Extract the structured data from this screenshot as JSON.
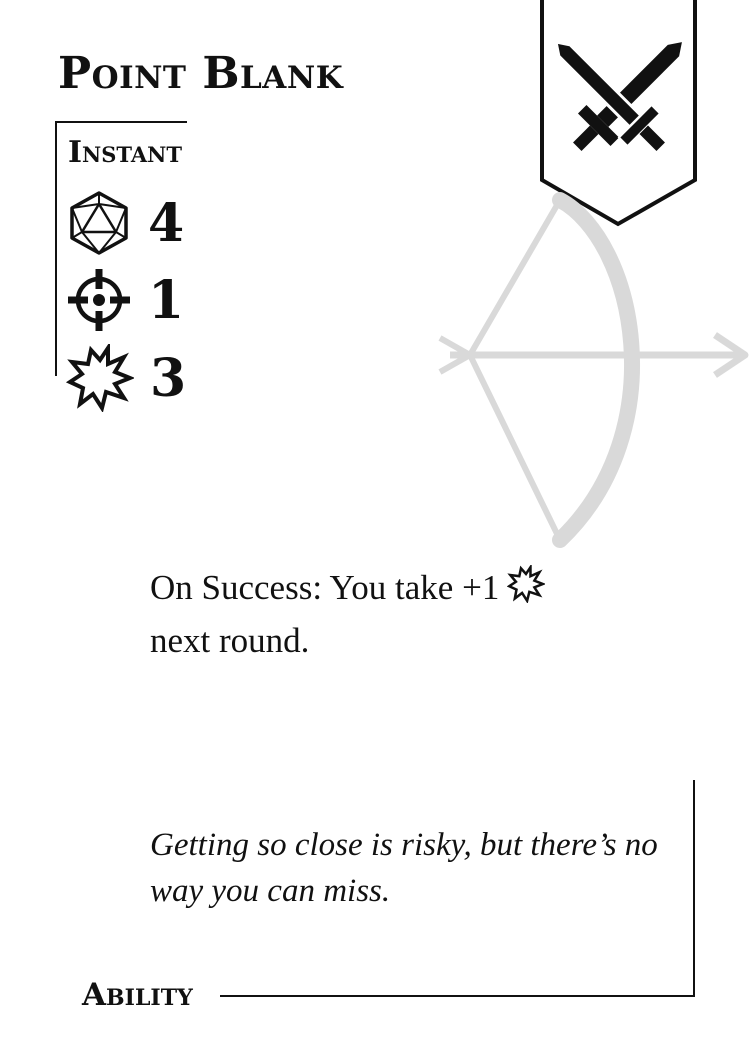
{
  "card": {
    "title": "Point Blank",
    "speed": "Instant",
    "stats": [
      {
        "icon": "d20-dice-icon",
        "value": "4"
      },
      {
        "icon": "crosshair-icon",
        "value": "1"
      },
      {
        "icon": "burst-icon",
        "value": "3"
      }
    ],
    "emblem_icon": "crossed-swords-icon",
    "art_icon": "bow-and-arrow-icon",
    "effect": {
      "line1": "On Success: You take +1",
      "inline_icon": "burst-icon",
      "line2": "next round."
    },
    "flavor": "Getting so close is risky, but there’s no way you can miss.",
    "type": "Ability"
  },
  "colors": {
    "ink": "#111111",
    "art_gray": "#d9d9d9",
    "background": "#ffffff"
  }
}
